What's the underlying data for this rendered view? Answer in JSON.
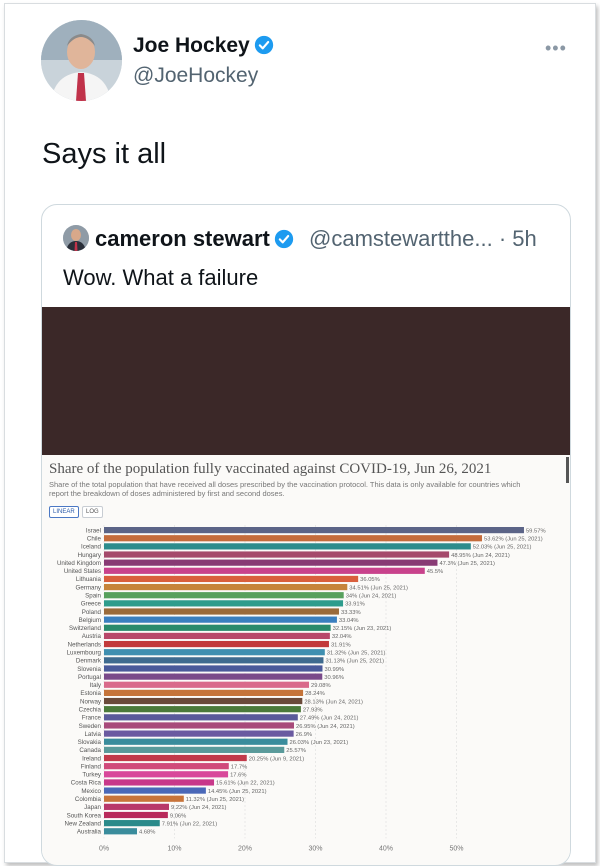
{
  "author": {
    "name": "Joe Hockey",
    "handle": "@JoeHockey",
    "more_label": "•••"
  },
  "tweet": {
    "text": "Says it all"
  },
  "quoted": {
    "name": "cameron stewart",
    "handle": "@camstewartthe...",
    "time": "· 5h",
    "text": "Wow. What a failure"
  },
  "colors": {
    "verified": "#1d9bf0",
    "media_dark": "#3b2828"
  },
  "chart_data": {
    "type": "bar",
    "orientation": "horizontal",
    "title": "Share of the population fully vaccinated against COVID-19, Jun 26, 2021",
    "subtitle": "Share of the total population that have received all doses prescribed by the vaccination protocol. This data is only available for countries which report the breakdown of doses administered by first and second doses.",
    "toggle": [
      "LINEAR",
      "LOG"
    ],
    "xlim": [
      0,
      60
    ],
    "xticks": [
      "0%",
      "10%",
      "20%",
      "30%",
      "40%",
      "50%"
    ],
    "grid": true,
    "bars": [
      {
        "country": "Israel",
        "value": 59.57,
        "label": "59.57%",
        "color": "#5b6487"
      },
      {
        "country": "Chile",
        "value": 53.62,
        "label": "53.62% (Jun 25, 2021)",
        "color": "#c46c3c"
      },
      {
        "country": "Iceland",
        "value": 52.03,
        "label": "52.03% (Jun 25, 2021)",
        "color": "#2d8c8c"
      },
      {
        "country": "Hungary",
        "value": 48.95,
        "label": "48.95% (Jun 24, 2021)",
        "color": "#a54a6b"
      },
      {
        "country": "United Kingdom",
        "value": 47.3,
        "label": "47.3% (Jun 25, 2021)",
        "color": "#883a74"
      },
      {
        "country": "United States",
        "value": 45.5,
        "label": "45.5%",
        "color": "#c8428c"
      },
      {
        "country": "Lithuania",
        "value": 36.05,
        "label": "36.05%",
        "color": "#d95f3c"
      },
      {
        "country": "Germany",
        "value": 34.51,
        "label": "34.51% (Jun 25, 2021)",
        "color": "#c6843a"
      },
      {
        "country": "Spain",
        "value": 34.0,
        "label": "34% (Jun 24, 2021)",
        "color": "#58a05c"
      },
      {
        "country": "Greece",
        "value": 33.91,
        "label": "33.91%",
        "color": "#2e9c8c"
      },
      {
        "country": "Poland",
        "value": 33.33,
        "label": "33.33%",
        "color": "#9a6a3a"
      },
      {
        "country": "Belgium",
        "value": 33.04,
        "label": "33.04%",
        "color": "#3a7fbf"
      },
      {
        "country": "Switzerland",
        "value": 32.15,
        "label": "32.15% (Jun 23, 2021)",
        "color": "#2a8a6c"
      },
      {
        "country": "Austria",
        "value": 32.04,
        "label": "32.04%",
        "color": "#b8486a"
      },
      {
        "country": "Netherlands",
        "value": 31.91,
        "label": "31.91%",
        "color": "#c23a3a"
      },
      {
        "country": "Luxembourg",
        "value": 31.32,
        "label": "31.32% (Jun 25, 2021)",
        "color": "#3f8fb0"
      },
      {
        "country": "Denmark",
        "value": 31.13,
        "label": "31.13% (Jun 25, 2021)",
        "color": "#3f6b8f"
      },
      {
        "country": "Slovenia",
        "value": 30.99,
        "label": "30.99%",
        "color": "#4a5a9a"
      },
      {
        "country": "Portugal",
        "value": 30.96,
        "label": "30.96%",
        "color": "#7a4a8a"
      },
      {
        "country": "Italy",
        "value": 29.08,
        "label": "29.08%",
        "color": "#d96a8a"
      },
      {
        "country": "Estonia",
        "value": 28.24,
        "label": "28.24%",
        "color": "#c5743a"
      },
      {
        "country": "Norway",
        "value": 28.13,
        "label": "28.13% (Jun 24, 2021)",
        "color": "#6a4a3a"
      },
      {
        "country": "Czechia",
        "value": 27.93,
        "label": "27.93%",
        "color": "#4b7a3a"
      },
      {
        "country": "France",
        "value": 27.49,
        "label": "27.49% (Jun 24, 2021)",
        "color": "#5a5a9a"
      },
      {
        "country": "Sweden",
        "value": 26.95,
        "label": "26.95% (Jun 24, 2021)",
        "color": "#a84a7a"
      },
      {
        "country": "Latvia",
        "value": 26.9,
        "label": "26.9%",
        "color": "#6a5aa0"
      },
      {
        "country": "Slovakia",
        "value": 26.03,
        "label": "26.03% (Jun 23, 2021)",
        "color": "#3a8c9c"
      },
      {
        "country": "Canada",
        "value": 25.57,
        "label": "25.57%",
        "color": "#5a9a9a"
      },
      {
        "country": "Ireland",
        "value": 20.25,
        "label": "20.25% (Jun 9, 2021)",
        "color": "#c23a4a"
      },
      {
        "country": "Finland",
        "value": 17.7,
        "label": "17.7%",
        "color": "#d04a7a"
      },
      {
        "country": "Turkey",
        "value": 17.6,
        "label": "17.6%",
        "color": "#d8489a"
      },
      {
        "country": "Costa Rica",
        "value": 15.61,
        "label": "15.61% (Jun 22, 2021)",
        "color": "#c8388a"
      },
      {
        "country": "Mexico",
        "value": 14.45,
        "label": "14.45% (Jun 25, 2021)",
        "color": "#4a68b8"
      },
      {
        "country": "Colombia",
        "value": 11.32,
        "label": "11.32% (Jun 25, 2021)",
        "color": "#c8743a"
      },
      {
        "country": "Japan",
        "value": 9.22,
        "label": "9.22% (Jun 24, 2021)",
        "color": "#b8386a"
      },
      {
        "country": "South Korea",
        "value": 9.06,
        "label": "9.06%",
        "color": "#b82a5a"
      },
      {
        "country": "New Zealand",
        "value": 7.91,
        "label": "7.91% (Jun 22, 2021)",
        "color": "#2a8a8a"
      },
      {
        "country": "Australia",
        "value": 4.68,
        "label": "4.68%",
        "color": "#3a8c9c"
      }
    ]
  }
}
